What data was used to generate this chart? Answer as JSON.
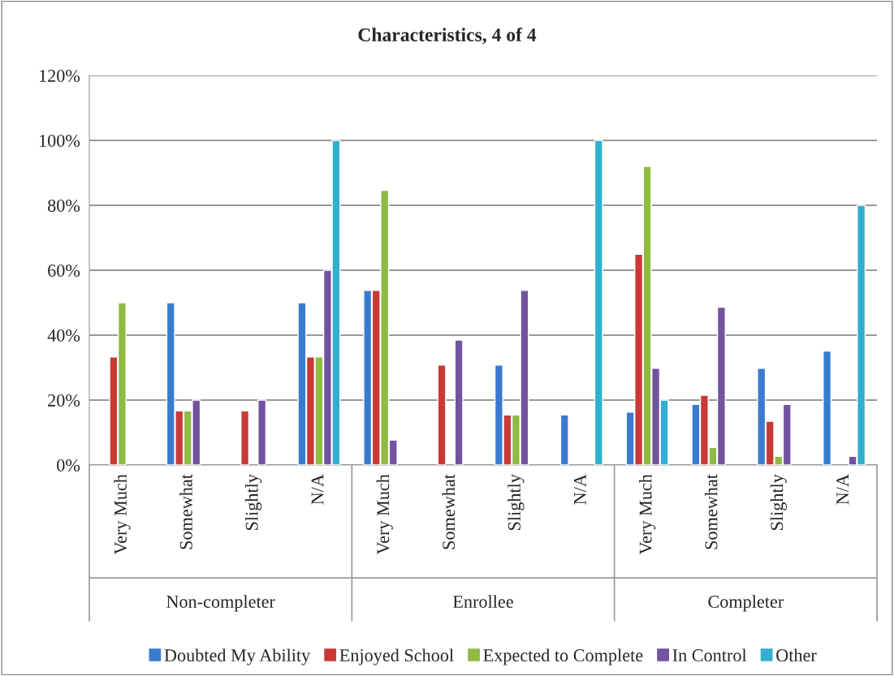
{
  "chart_data": {
    "type": "bar",
    "title": "Characteristics, 4 of 4",
    "categories": [
      "Very Much",
      "Somewhat",
      "Slightly",
      "N/A",
      "Very Much",
      "Somewhat",
      "Slightly",
      "N/A",
      "Very Much",
      "Somewhat",
      "Slightly",
      "N/A"
    ],
    "annotations": [
      "Non-completer",
      "Enrollee",
      "Completer"
    ],
    "series": [
      {
        "name": "Doubted My Ability",
        "color": "#3a7bd0",
        "values": [
          null,
          50,
          null,
          50,
          53.8,
          null,
          30.8,
          15.4,
          16.3,
          18.7,
          29.8,
          35.1
        ]
      },
      {
        "name": "Enjoyed School",
        "color": "#c83a37",
        "values": [
          33.3,
          16.7,
          16.7,
          33.3,
          53.8,
          30.8,
          15.4,
          null,
          64.9,
          21.5,
          13.5,
          null
        ]
      },
      {
        "name": "Expected to Complete",
        "color": "#8fbb43",
        "values": [
          50,
          16.7,
          null,
          33.3,
          84.6,
          null,
          15.4,
          null,
          92,
          5.4,
          2.7,
          null
        ]
      },
      {
        "name": "In Control",
        "color": "#7352a0",
        "values": [
          null,
          20,
          20,
          60,
          7.7,
          38.5,
          53.8,
          null,
          29.8,
          48.6,
          18.7,
          2.7
        ]
      },
      {
        "name": "Other",
        "color": "#31aed0",
        "values": [
          null,
          null,
          null,
          100,
          null,
          null,
          null,
          100,
          20,
          null,
          null,
          80
        ]
      }
    ],
    "ylim": [
      0,
      120
    ],
    "yticks": [
      {
        "value": 0,
        "label": "0%"
      },
      {
        "value": 20,
        "label": "20%"
      },
      {
        "value": 40,
        "label": "40%"
      },
      {
        "value": 60,
        "label": "60%"
      },
      {
        "value": 80,
        "label": "80%"
      },
      {
        "value": 100,
        "label": "100%"
      },
      {
        "value": 120,
        "label": "120%"
      }
    ],
    "grid": "y",
    "legend": "bottom"
  }
}
